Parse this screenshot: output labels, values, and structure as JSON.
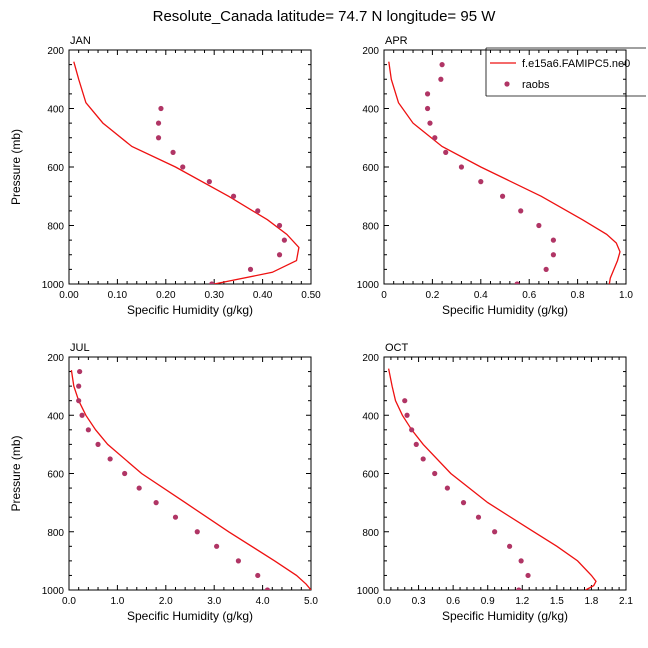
{
  "title": "Resolute_Canada  latitude= 74.7 N longitude= 95 W",
  "legend": {
    "model": "f.e15a6.FAMIPC5.ne0",
    "obs": "raobs",
    "placement": "top-right of APR panel"
  },
  "colors": {
    "model": "#ee1111",
    "obs": "#b03565",
    "axis": "#000000"
  },
  "chart_data": [
    {
      "type": "line",
      "panel": "JAN",
      "title": "JAN",
      "xlabel": "Specific Humidity (g/kg)",
      "ylabel": "Pressure (mb)",
      "xlim": [
        0.0,
        0.5
      ],
      "ylim": [
        1000,
        200
      ],
      "xticks": [
        0.0,
        0.1,
        0.2,
        0.3,
        0.4,
        0.5
      ],
      "xticklabels": [
        "0.00",
        "0.10",
        "0.20",
        "0.30",
        "0.40",
        "0.50"
      ],
      "yticks": [
        200,
        400,
        600,
        800,
        1000
      ],
      "model": {
        "p": [
          240,
          300,
          380,
          450,
          530,
          600,
          700,
          780,
          830,
          875,
          920,
          960,
          1000
        ],
        "q": [
          0.01,
          0.02,
          0.035,
          0.07,
          0.13,
          0.22,
          0.33,
          0.41,
          0.45,
          0.475,
          0.47,
          0.42,
          0.3
        ]
      },
      "obs": {
        "p": [
          400,
          450,
          500,
          550,
          600,
          650,
          700,
          750,
          800,
          850,
          900,
          950,
          1000
        ],
        "q": [
          0.19,
          0.185,
          0.185,
          0.215,
          0.235,
          0.29,
          0.34,
          0.39,
          0.435,
          0.445,
          0.435,
          0.375,
          0.295
        ]
      }
    },
    {
      "type": "line",
      "panel": "APR",
      "title": "APR",
      "xlabel": "Specific Humidity (g/kg)",
      "ylabel": "",
      "xlim": [
        0.0,
        1.0
      ],
      "ylim": [
        1000,
        200
      ],
      "xticks": [
        0.0,
        0.2,
        0.4,
        0.6,
        0.8,
        1.0
      ],
      "xticklabels": [
        "0",
        "0.2",
        "0.4",
        "0.6",
        "0.8",
        "1.0"
      ],
      "yticks": [
        200,
        400,
        600,
        800,
        1000
      ],
      "model": {
        "p": [
          240,
          300,
          380,
          450,
          530,
          600,
          700,
          780,
          830,
          860,
          890,
          920,
          950,
          980,
          1005
        ],
        "q": [
          0.02,
          0.03,
          0.06,
          0.12,
          0.24,
          0.4,
          0.65,
          0.82,
          0.92,
          0.96,
          0.975,
          0.965,
          0.95,
          0.935,
          0.93
        ]
      },
      "obs": {
        "p": [
          250,
          300,
          350,
          400,
          450,
          500,
          550,
          600,
          650,
          700,
          750,
          800,
          850,
          900,
          950,
          1000
        ],
        "q": [
          0.24,
          0.235,
          0.18,
          0.18,
          0.19,
          0.21,
          0.255,
          0.32,
          0.4,
          0.49,
          0.565,
          0.64,
          0.7,
          0.7,
          0.67,
          0.55
        ]
      }
    },
    {
      "type": "line",
      "panel": "JUL",
      "title": "JUL",
      "xlabel": "Specific Humidity (g/kg)",
      "ylabel": "Pressure (mb)",
      "xlim": [
        0.0,
        5.0
      ],
      "ylim": [
        1000,
        200
      ],
      "xticks": [
        0.0,
        1.0,
        2.0,
        3.0,
        4.0,
        5.0
      ],
      "xticklabels": [
        "0.0",
        "1.0",
        "2.0",
        "3.0",
        "4.0",
        "5.0"
      ],
      "yticks": [
        200,
        400,
        600,
        800,
        1000
      ],
      "model": {
        "p": [
          245,
          300,
          350,
          400,
          450,
          500,
          600,
          700,
          800,
          900,
          950,
          980,
          1000
        ],
        "q": [
          0.05,
          0.1,
          0.2,
          0.35,
          0.55,
          0.8,
          1.5,
          2.4,
          3.3,
          4.25,
          4.7,
          4.9,
          5.0
        ]
      },
      "obs": {
        "p": [
          250,
          300,
          350,
          400,
          450,
          500,
          550,
          600,
          650,
          700,
          750,
          800,
          850,
          900,
          950,
          1000
        ],
        "q": [
          0.22,
          0.2,
          0.2,
          0.27,
          0.4,
          0.6,
          0.85,
          1.15,
          1.45,
          1.8,
          2.2,
          2.65,
          3.05,
          3.5,
          3.9,
          4.1
        ]
      }
    },
    {
      "type": "line",
      "panel": "OCT",
      "title": "OCT",
      "xlabel": "Specific Humidity (g/kg)",
      "ylabel": "",
      "xlim": [
        0.0,
        2.1
      ],
      "ylim": [
        1000,
        200
      ],
      "xticks": [
        0.0,
        0.3,
        0.6,
        0.9,
        1.2,
        1.5,
        1.8,
        2.1
      ],
      "xticklabels": [
        "0.0",
        "0.3",
        "0.6",
        "0.9",
        "1.2",
        "1.5",
        "1.8",
        "2.1"
      ],
      "yticks": [
        200,
        400,
        600,
        800,
        1000
      ],
      "model": {
        "p": [
          240,
          300,
          350,
          400,
          450,
          500,
          600,
          700,
          800,
          850,
          900,
          950,
          970,
          985,
          1000
        ],
        "q": [
          0.04,
          0.07,
          0.1,
          0.16,
          0.24,
          0.34,
          0.58,
          0.9,
          1.3,
          1.5,
          1.68,
          1.8,
          1.84,
          1.82,
          1.75
        ]
      },
      "obs": {
        "p": [
          350,
          400,
          450,
          500,
          550,
          600,
          650,
          700,
          750,
          800,
          850,
          900,
          950,
          1000
        ],
        "q": [
          0.18,
          0.2,
          0.24,
          0.28,
          0.34,
          0.44,
          0.55,
          0.69,
          0.82,
          0.96,
          1.09,
          1.19,
          1.25,
          1.17
        ]
      }
    }
  ]
}
